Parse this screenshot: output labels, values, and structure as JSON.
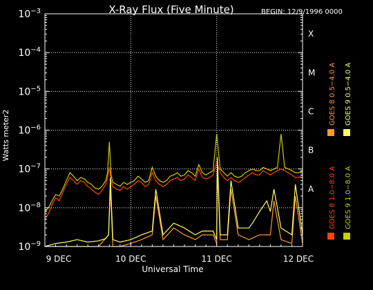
{
  "chart_data": {
    "type": "line",
    "title": "X-Ray Flux (Five Minute)",
    "begin_label": "BEGIN: 12/9/1996 0000",
    "xlabel": "Universal Time",
    "ylabel": "Watts meter2",
    "yscale": "log",
    "ylim": [
      1e-09,
      0.001
    ],
    "y_ticks": [
      {
        "value": 1e-09,
        "base": "10",
        "exp": "−9"
      },
      {
        "value": 1e-08,
        "base": "10",
        "exp": "−8"
      },
      {
        "value": 1e-07,
        "base": "10",
        "exp": "−7"
      },
      {
        "value": 1e-06,
        "base": "10",
        "exp": "−6"
      },
      {
        "value": 1e-05,
        "base": "10",
        "exp": "−5"
      },
      {
        "value": 0.0001,
        "base": "10",
        "exp": "−4"
      },
      {
        "value": 0.001,
        "base": "10",
        "exp": "−3"
      }
    ],
    "xlim": [
      0,
      72
    ],
    "x_ticks": [
      {
        "value": 0,
        "label": "9 DEC"
      },
      {
        "value": 24,
        "label": "10 DEC"
      },
      {
        "value": 48,
        "label": "11 DEC"
      },
      {
        "value": 72,
        "label": "12 DEC"
      }
    ],
    "flare_classes": [
      {
        "label": "A",
        "value": 1e-08
      },
      {
        "label": "B",
        "value": 1e-07
      },
      {
        "label": "C",
        "value": 1e-06
      },
      {
        "label": "M",
        "value": 1e-05
      },
      {
        "label": "X",
        "value": 0.0001
      }
    ],
    "grid": true,
    "legend_position": "right",
    "series": [
      {
        "name": "GOES 8 1.0−8.0 A",
        "color": "#ff4400",
        "x": [
          0,
          1,
          2,
          3,
          4,
          5,
          6,
          7,
          8,
          9,
          10,
          11,
          12,
          13,
          14,
          15,
          16,
          17,
          17.5,
          18,
          18.5,
          19,
          20,
          21,
          22,
          23,
          24,
          25,
          26,
          27,
          28,
          29,
          30,
          31,
          32,
          33,
          34,
          35,
          36,
          37,
          38,
          39,
          40,
          41,
          42,
          43,
          44,
          45,
          46,
          47,
          48,
          49,
          50,
          51,
          52,
          53,
          54,
          55,
          56,
          57,
          58,
          59,
          60,
          61,
          62,
          63,
          64,
          65,
          66,
          67,
          68,
          69,
          70,
          71,
          72
        ],
        "y": [
          5e-09,
          7e-09,
          1.2e-08,
          1.8e-08,
          1.5e-08,
          2.5e-08,
          4e-08,
          6e-08,
          5e-08,
          4e-08,
          5e-08,
          4.5e-08,
          3.5e-08,
          3e-08,
          2.5e-08,
          2.2e-08,
          2.8e-08,
          4e-08,
          6e-08,
          1.1e-07,
          5e-08,
          3.5e-08,
          3e-08,
          2.8e-08,
          3.5e-08,
          3e-08,
          3.5e-08,
          4e-08,
          5e-08,
          4.5e-08,
          3.5e-08,
          4e-08,
          8e-08,
          5e-08,
          4e-08,
          3.5e-08,
          4e-08,
          5e-08,
          5.5e-08,
          6e-08,
          5e-08,
          5.5e-08,
          7e-08,
          6e-08,
          5e-08,
          1e-07,
          6e-08,
          5.5e-08,
          6e-08,
          7e-08,
          1.5e-07,
          8e-08,
          6e-08,
          5e-08,
          6e-08,
          5e-08,
          4.5e-08,
          5e-08,
          6e-08,
          7e-08,
          8e-08,
          7e-08,
          7e-08,
          9e-08,
          8e-08,
          7e-08,
          8e-08,
          9e-08,
          1e-07,
          9e-08,
          8e-08,
          7e-08,
          6e-08,
          6e-08,
          7e-08
        ]
      },
      {
        "name": "GOES 8 0.5−4.0 A",
        "color": "#ff9933",
        "x": [
          0,
          3,
          6,
          9,
          12,
          15,
          17.8,
          18.3,
          19,
          21,
          24,
          27,
          30,
          31,
          33,
          36,
          39,
          42,
          44,
          47,
          48,
          48.2,
          49,
          51,
          52,
          54,
          57,
          60,
          63,
          64,
          66,
          69,
          70,
          72
        ],
        "y": [
          1e-09,
          1e-09,
          1e-09,
          1e-09,
          1e-09,
          1e-09,
          2e-09,
          3e-08,
          1e-09,
          1e-09,
          1.2e-09,
          1.5e-09,
          2e-09,
          2e-08,
          1.5e-09,
          3e-09,
          2e-09,
          1.5e-09,
          2e-09,
          2e-09,
          1.2e-09,
          1e-07,
          1.5e-09,
          1.5e-09,
          3e-08,
          2e-09,
          1.5e-09,
          2e-09,
          2e-09,
          1.5e-08,
          1.5e-09,
          1.2e-09,
          2e-08,
          1.2e-09
        ]
      },
      {
        "name": "GOES 9 1.0−8.0 A",
        "color": "#cccc00",
        "x": [
          0,
          1,
          2,
          3,
          4,
          5,
          6,
          7,
          8,
          9,
          10,
          11,
          12,
          13,
          14,
          15,
          16,
          17,
          17.5,
          18,
          18.5,
          19,
          20,
          21,
          22,
          23,
          24,
          25,
          26,
          27,
          28,
          29,
          30,
          31,
          32,
          33,
          34,
          35,
          36,
          37,
          38,
          39,
          40,
          41,
          42,
          43,
          44,
          45,
          46,
          47,
          48,
          49,
          50,
          51,
          52,
          53,
          54,
          55,
          56,
          57,
          58,
          59,
          60,
          61,
          62,
          63,
          64,
          65,
          66,
          67,
          68,
          69,
          70,
          71,
          72
        ],
        "y": [
          8e-09,
          1e-08,
          1.5e-08,
          2.2e-08,
          2e-08,
          3e-08,
          5e-08,
          8e-08,
          6.5e-08,
          5e-08,
          6e-08,
          5.5e-08,
          4.5e-08,
          4e-08,
          3.2e-08,
          3e-08,
          3.6e-08,
          5e-08,
          8e-08,
          5e-07,
          7e-08,
          4.5e-08,
          4e-08,
          3.6e-08,
          4.5e-08,
          4e-08,
          4.5e-08,
          5e-08,
          6.5e-08,
          5.5e-08,
          4.5e-08,
          5e-08,
          1.1e-07,
          6.5e-08,
          5e-08,
          4.5e-08,
          5e-08,
          6.5e-08,
          7e-08,
          8e-08,
          6.5e-08,
          7e-08,
          9e-08,
          8e-08,
          6.5e-08,
          1.3e-07,
          8e-08,
          7e-08,
          8e-08,
          9e-08,
          8e-07,
          1e-07,
          8e-08,
          6.5e-08,
          8e-08,
          6.5e-08,
          6e-08,
          6.5e-08,
          8e-08,
          9e-08,
          1e-07,
          9e-08,
          9e-08,
          1.1e-07,
          1e-07,
          9e-08,
          1e-07,
          1.1e-07,
          8e-07,
          1.1e-07,
          1e-07,
          9e-08,
          8e-08,
          8e-08,
          9e-08
        ]
      },
      {
        "name": "GOES 9 0.5−4.0 A",
        "color": "#ffff66",
        "x": [
          0,
          3,
          6,
          9,
          12,
          15,
          17,
          17.8,
          18.3,
          19,
          21,
          24,
          27,
          30,
          31,
          33,
          36,
          39,
          42,
          44,
          47,
          48,
          48.2,
          49,
          51,
          52,
          54,
          57,
          58,
          60,
          62,
          63,
          64,
          66,
          69,
          70,
          72
        ],
        "y": [
          1e-09,
          1.2e-09,
          1.3e-09,
          1.5e-09,
          1.3e-09,
          1.4e-09,
          1.6e-09,
          2e-09,
          6e-08,
          1.5e-09,
          1.3e-09,
          1.5e-09,
          2e-09,
          2.5e-09,
          3e-08,
          2e-09,
          4e-09,
          3e-09,
          2e-09,
          2.5e-09,
          2.5e-09,
          1.5e-09,
          2e-07,
          2e-09,
          2e-09,
          5e-08,
          3e-09,
          3e-09,
          4e-09,
          8e-09,
          1.5e-08,
          8e-09,
          3e-08,
          3e-09,
          2e-09,
          4e-08,
          2e-09
        ]
      }
    ]
  }
}
